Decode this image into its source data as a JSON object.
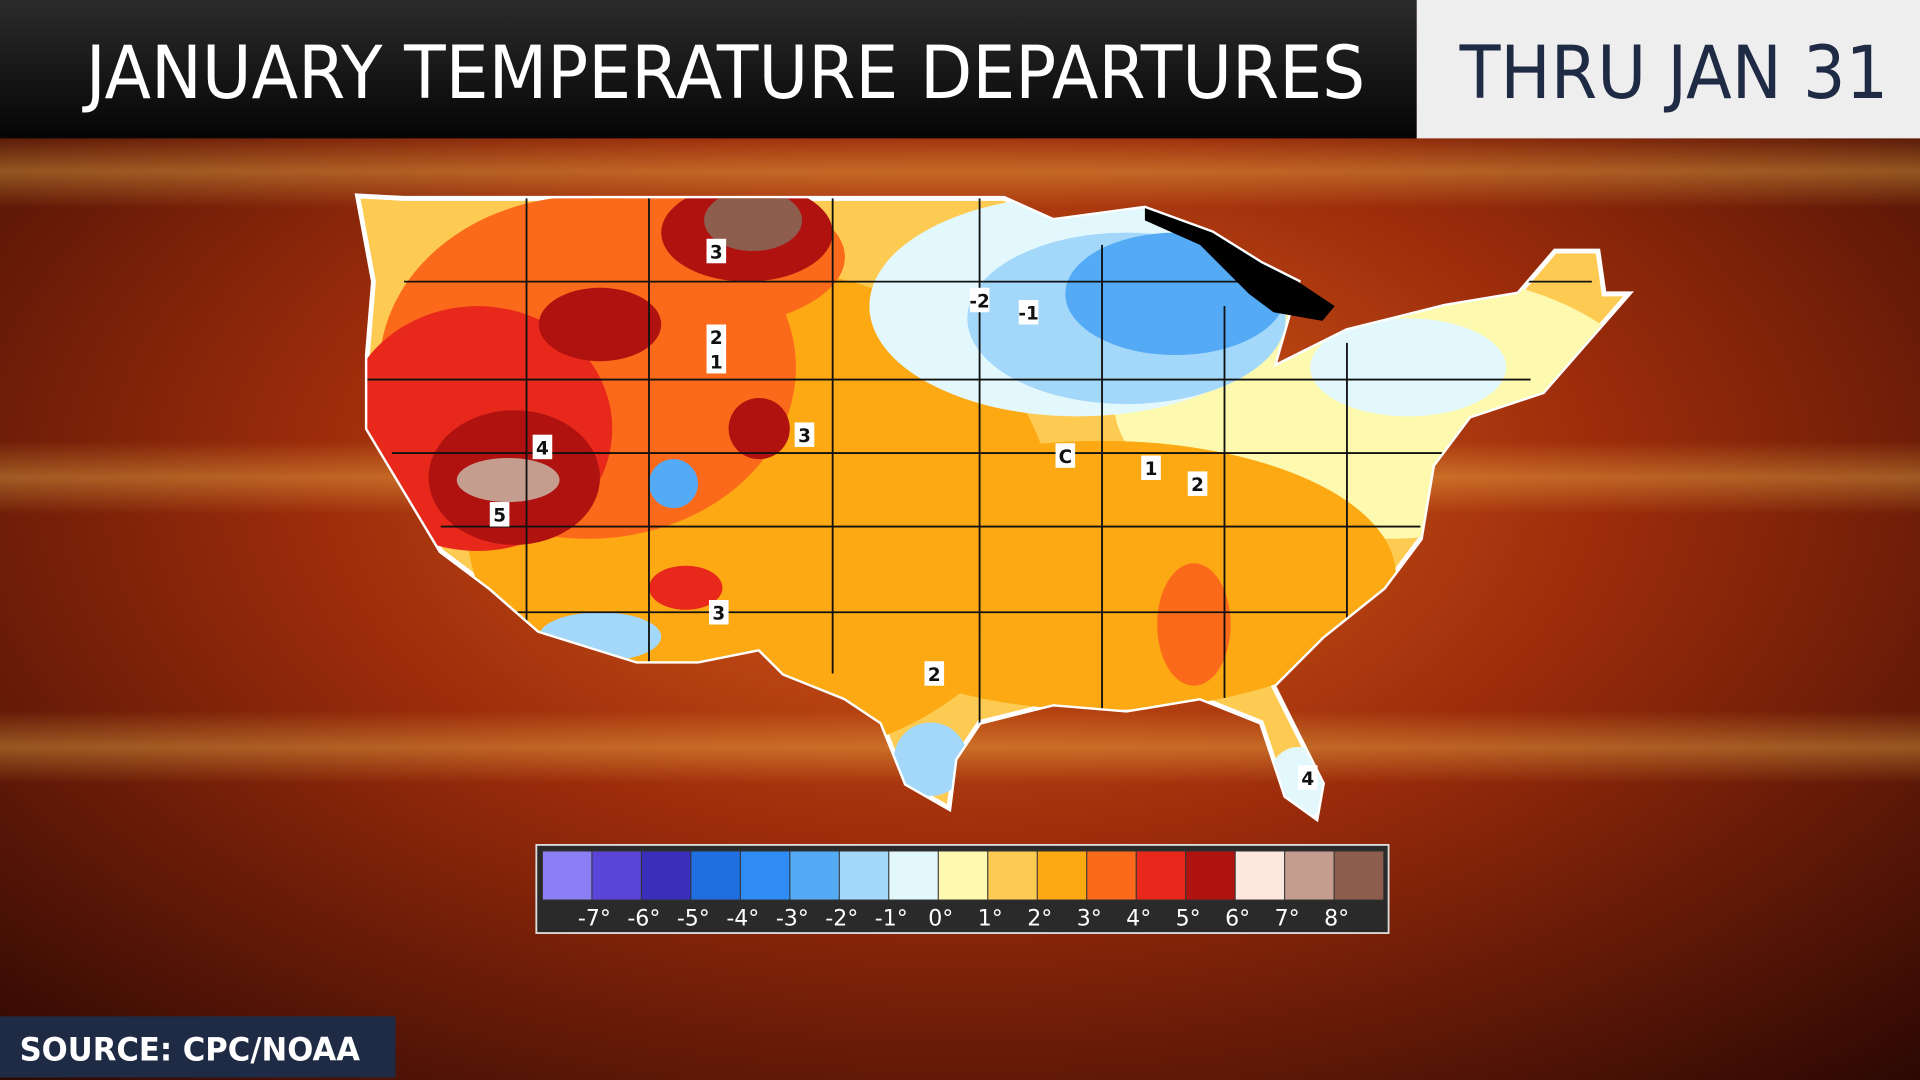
{
  "header": {
    "title": "JANUARY TEMPERATURE DEPARTURES",
    "date": "THRU JAN 31"
  },
  "map": {
    "contour_labels": [
      "3",
      "2",
      "1",
      "-2",
      "-1",
      "4",
      "5",
      "3",
      "3",
      "C",
      "1",
      "2",
      "2",
      "4"
    ]
  },
  "legend": {
    "colors": [
      "#8b7ff5",
      "#5a45d8",
      "#3a2ebd",
      "#1f6fe0",
      "#2f8cf5",
      "#55aaf5",
      "#a3d8fb",
      "#e3f8fd",
      "#fdfaaf",
      "#fdcb52",
      "#fca913",
      "#fb6a1a",
      "#e8281b",
      "#b01210",
      "#fde8e0",
      "#c49d8e",
      "#8d5d4e"
    ],
    "labels": [
      "-7°",
      "-6°",
      "-5°",
      "-4°",
      "-3°",
      "-2°",
      "-1°",
      "0°",
      "1°",
      "2°",
      "3°",
      "4°",
      "5°",
      "6°",
      "7°",
      "8°"
    ]
  },
  "source": "SOURCE: CPC/NOAA"
}
